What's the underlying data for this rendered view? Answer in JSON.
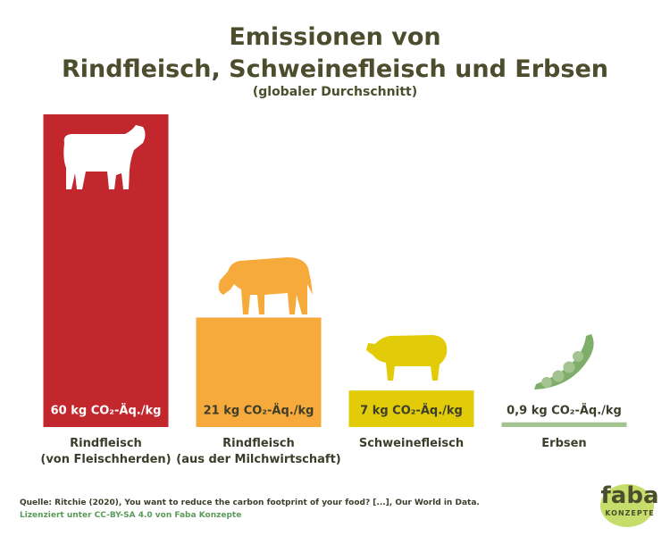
{
  "chart_data": {
    "type": "bar",
    "title": "Emissionen von\nRindfleisch, Schweinefleisch und Erbsen",
    "subtitle": "(globaler Durchschnitt)",
    "categories": [
      "Rindfleisch\n(von Fleischherden)",
      "Rindfleisch\n(aus der Milchwirtschaft)",
      "Schweinefleisch",
      "Erbsen"
    ],
    "values": [
      60,
      21,
      7,
      0.9
    ],
    "value_labels": [
      "60 kg CO₂-Äq./kg",
      "21 kg CO₂-Äq./kg",
      "7 kg CO₂-Äq./kg",
      "0,9 kg CO₂-Äq./kg"
    ],
    "colors": [
      "#c1272d",
      "#f6aa3c",
      "#e2cc0a",
      "#a3c490"
    ],
    "label_colors": [
      "#ffffff",
      "#3d3d2b",
      "#3d3d2b",
      "#3d3d2b"
    ],
    "ylim": [
      0,
      60
    ]
  },
  "footer": {
    "source": "Quelle: Ritchie (2020), You want to reduce the carbon footprint of your food? [...], Our World in Data.",
    "license": "Lizenziert unter CC-BY-SA 4.0 von Faba Konzepte",
    "logo": "faba",
    "logo_sub": "KONZEPTE"
  }
}
